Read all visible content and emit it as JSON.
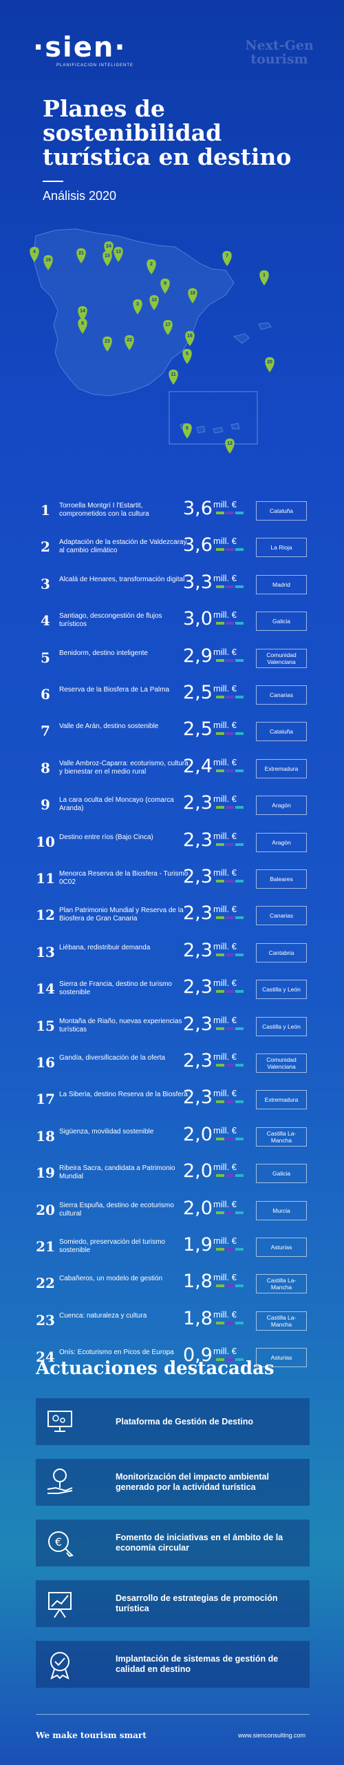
{
  "brand": {
    "logo": "·sien·",
    "tagline": "PLANIFICACIÓN INTELIGENTE",
    "watermark_line1": "Next-Gen",
    "watermark_line2": "tourism"
  },
  "title": "Planes de sostenibilidad turística en destino",
  "subtitle": "Análisis 2020",
  "colors": {
    "pin": "#8cc63f",
    "map_land": "#2f62c8",
    "bar_green": "#7bc143",
    "bar_purple": "#6b3fc4",
    "bar_cyan": "#2bb3c9"
  },
  "map_pins": [
    "4",
    "19",
    "21",
    "24",
    "15",
    "13",
    "2",
    "7",
    "9",
    "1",
    "18",
    "10",
    "14",
    "8",
    "3",
    "22",
    "23",
    "17",
    "16",
    "5",
    "11",
    "20",
    "6",
    "12"
  ],
  "plans": [
    {
      "num": "1",
      "name": "Torroella Montgrí I l'Estartit, comprometidos con la cultura",
      "amount": "3,6",
      "unit": "mill. €",
      "region": "Cataluña"
    },
    {
      "num": "2",
      "name": "Adaptación de la estación de Valdezcaray al cambio climático",
      "amount": "3,6",
      "unit": "mill. €",
      "region": "La Rioja"
    },
    {
      "num": "3",
      "name": "Alcalá de Henares, transformación digital",
      "amount": "3,3",
      "unit": "mill. €",
      "region": "Madrid"
    },
    {
      "num": "4",
      "name": "Santiago, descongestión de flujos turísticos",
      "amount": "3,0",
      "unit": "mill. €",
      "region": "Galicia"
    },
    {
      "num": "5",
      "name": "Benidorm, destino inteligente",
      "amount": "2,9",
      "unit": "mill. €",
      "region": "Comunidad Valenciana"
    },
    {
      "num": "6",
      "name": "Reserva de la Biosfera de La Palma",
      "amount": "2,5",
      "unit": "mill. €",
      "region": "Canarias"
    },
    {
      "num": "7",
      "name": "Valle de Arán, destino sostenible",
      "amount": "2,5",
      "unit": "mill. €",
      "region": "Cataluña"
    },
    {
      "num": "8",
      "name": "Valle Ambroz-Caparra: ecoturismo, cultura y bienestar en el medio rural",
      "amount": "2,4",
      "unit": "mill. €",
      "region": "Extremadura"
    },
    {
      "num": "9",
      "name": "La cara oculta del Moncayo (comarca Aranda)",
      "amount": "2,3",
      "unit": "mill. €",
      "region": "Aragón"
    },
    {
      "num": "10",
      "name": "Destino entre ríos (Bajo Cinca)",
      "amount": "2,3",
      "unit": "mill. €",
      "region": "Aragón"
    },
    {
      "num": "11",
      "name": "Menorca Reserva de la Biosfera - Turismo 0C02",
      "amount": "2,3",
      "unit": "mill. €",
      "region": "Baleares"
    },
    {
      "num": "12",
      "name": "Plan Patrimonio Mundial y Reserva de la Biosfera de Gran Canaria",
      "amount": "2,3",
      "unit": "mill. €",
      "region": "Canarias"
    },
    {
      "num": "13",
      "name": "Liébana, redistribuir demanda",
      "amount": "2,3",
      "unit": "mill. €",
      "region": "Cantabria"
    },
    {
      "num": "14",
      "name": "Sierra de Francia, destino de turismo sostenible",
      "amount": "2,3",
      "unit": "mill. €",
      "region": "Castilla y León"
    },
    {
      "num": "15",
      "name": "Montaña de Riaño, nuevas experiencias turísticas",
      "amount": "2,3",
      "unit": "mill. €",
      "region": "Castilla y León"
    },
    {
      "num": "16",
      "name": "Gandía, diversificación de la oferta",
      "amount": "2,3",
      "unit": "mill. €",
      "region": "Comunidad Valenciana"
    },
    {
      "num": "17",
      "name": "La Siberia, destino Reserva de la Biosfera",
      "amount": "2,3",
      "unit": "mill. €",
      "region": "Extremadura"
    },
    {
      "num": "18",
      "name": "Sigüenza, movilidad sostenible",
      "amount": "2,0",
      "unit": "mill. €",
      "region": "Castilla La-Mancha"
    },
    {
      "num": "19",
      "name": "Ribeira Sacra, candidata a Patrimonio Mundial",
      "amount": "2,0",
      "unit": "mill. €",
      "region": "Galicia"
    },
    {
      "num": "20",
      "name": "Sierra Espuña, destino de ecoturismo cultural",
      "amount": "2,0",
      "unit": "mill. €",
      "region": "Murcia"
    },
    {
      "num": "21",
      "name": "Somiedo, preservación del turismo sostenible",
      "amount": "1,9",
      "unit": "mill. €",
      "region": "Asturias"
    },
    {
      "num": "22",
      "name": "Cabañeros, un modelo de gestión",
      "amount": "1,8",
      "unit": "mill. €",
      "region": "Castilla La-Mancha"
    },
    {
      "num": "23",
      "name": "Cuenca: naturaleza y cultura",
      "amount": "1,8",
      "unit": "mill. €",
      "region": "Castilla La-Mancha"
    },
    {
      "num": "24",
      "name": "Onís: Ecoturismo en Picos de Europa",
      "amount": "0,9",
      "unit": "mill. €",
      "region": "Asturias"
    }
  ],
  "actions_title": "Actuaciones destacadas",
  "actions": [
    {
      "label": "Plataforma de Gestión de Destino",
      "icon": "monitor-gear-icon"
    },
    {
      "label": "Monitorización del impacto ambiental generado por la actividad turística",
      "icon": "hand-tree-icon"
    },
    {
      "label": "Fomento de iniciativas en el ámbito de la economía circular",
      "icon": "euro-cursor-icon"
    },
    {
      "label": "Desarrollo de estrategias de promoción turística",
      "icon": "presentation-chart-icon"
    },
    {
      "label": "Implantación de sistemas de gestión de calidad en destino",
      "icon": "quality-badge-icon"
    }
  ],
  "footer": {
    "slogan": "We make tourism smart",
    "website": "www.sienconsulting.com"
  }
}
